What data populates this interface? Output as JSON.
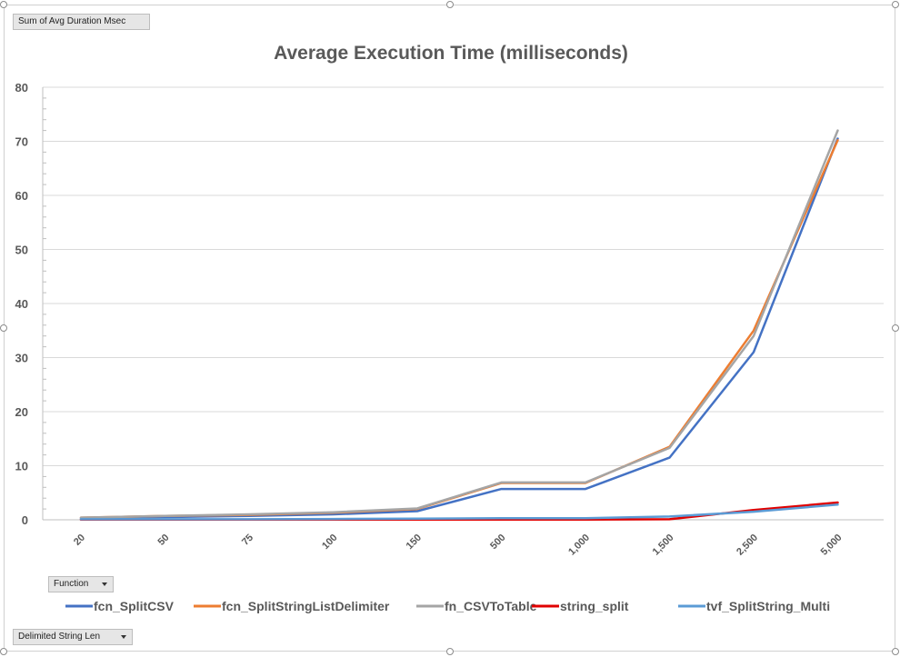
{
  "pivot": {
    "values_field": "Sum of Avg Duration Msec",
    "legend_field": "Function",
    "axis_field": "Delimited String Len"
  },
  "chart_data": {
    "type": "line",
    "title": "Average Execution Time (milliseconds)",
    "xlabel": "",
    "ylabel": "",
    "categories": [
      "20",
      "50",
      "75",
      "100",
      "150",
      "500",
      "1,000",
      "1,500",
      "2,500",
      "5,000"
    ],
    "ylim": [
      0,
      80
    ],
    "yticks": [
      0,
      10,
      20,
      30,
      40,
      50,
      60,
      70,
      80
    ],
    "grid": true,
    "legend_position": "bottom",
    "series": [
      {
        "name": "fcn_SplitCSV",
        "color": "#4472c4",
        "values": [
          0.3,
          0.5,
          0.7,
          1.0,
          1.6,
          5.7,
          5.7,
          11.5,
          31.0,
          70.5
        ]
      },
      {
        "name": "fcn_SplitStringListDelimiter",
        "color": "#ed7d31",
        "values": [
          0.4,
          0.7,
          0.9,
          1.3,
          2.0,
          6.8,
          6.8,
          13.5,
          35.0,
          70.2
        ]
      },
      {
        "name": "fn_CSVToTable",
        "color": "#a5a5a5",
        "values": [
          0.4,
          0.7,
          1.0,
          1.4,
          2.1,
          6.9,
          6.9,
          13.3,
          34.0,
          72.0
        ]
      },
      {
        "name": "string_split",
        "color": "#e00000",
        "values": [
          0.05,
          0.05,
          0.05,
          0.05,
          0.05,
          0.05,
          0.05,
          0.1,
          1.8,
          3.2
        ]
      },
      {
        "name": "tvf_SplitString_Multi",
        "color": "#5b9bd5",
        "values": [
          0.1,
          0.1,
          0.1,
          0.15,
          0.2,
          0.3,
          0.3,
          0.6,
          1.5,
          2.8
        ]
      }
    ]
  }
}
